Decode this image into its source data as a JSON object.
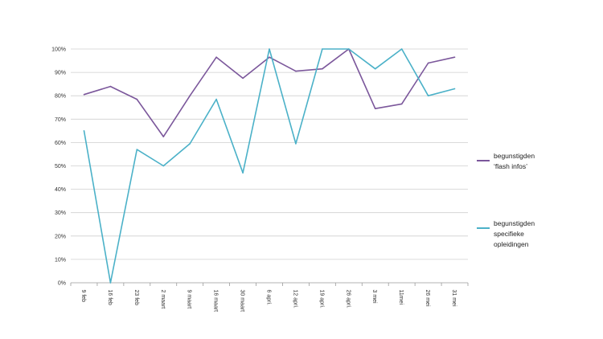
{
  "chart_data": {
    "type": "line",
    "title": "",
    "xlabel": "",
    "ylabel": "",
    "categories": [
      "9 feb",
      "16 feb",
      "23 feb",
      "2 maart",
      "9 maart",
      "16 maart",
      "30 maart",
      "6 apri.",
      "12 apri.",
      "19 apri.",
      "26 apri.",
      "3 mei",
      "11mei",
      "26 mei",
      "31 mei"
    ],
    "ylim": [
      0,
      100
    ],
    "yticks": [
      0,
      10,
      20,
      30,
      40,
      50,
      60,
      70,
      80,
      90,
      100
    ],
    "ytick_labels": [
      "0%",
      "10%",
      "20%",
      "30%",
      "40%",
      "50%",
      "60%",
      "70%",
      "80%",
      "90%",
      "100%"
    ],
    "grid": true,
    "legend_position": "right",
    "series": [
      {
        "name": "begunstigden\n‘flash infos’",
        "color": "#7b579b",
        "values": [
          80.5,
          84,
          78.5,
          62.5,
          80,
          96.5,
          87.5,
          96.5,
          90.5,
          91.5,
          100,
          74.5,
          76.5,
          94,
          96.5
        ]
      },
      {
        "name": "begunstigden\nspecifieke\nopleidingen",
        "color": "#4bb1c8",
        "values": [
          65,
          0,
          57,
          50,
          59.5,
          78.5,
          47,
          100,
          59.5,
          100,
          100,
          91.5,
          100,
          80,
          83
        ]
      }
    ]
  }
}
